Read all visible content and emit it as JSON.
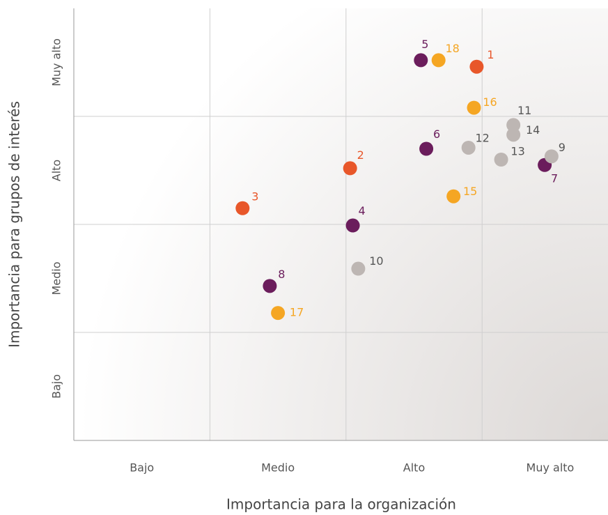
{
  "chart_data": {
    "type": "scatter",
    "x_label": "Importancia para la organización",
    "y_label": "Importancia para grupos de interés",
    "xlim": [
      0,
      3.92
    ],
    "ylim": [
      0,
      4
    ],
    "xticks": [
      {
        "value": 0.5,
        "label": "Bajo"
      },
      {
        "value": 1.5,
        "label": "Medio"
      },
      {
        "value": 2.5,
        "label": "Alto"
      },
      {
        "value": 3.5,
        "label": "Muy alto"
      }
    ],
    "yticks": [
      {
        "value": 0.5,
        "label": "Bajo"
      },
      {
        "value": 1.5,
        "label": "Medio"
      },
      {
        "value": 2.5,
        "label": "Alto"
      },
      {
        "value": 3.5,
        "label": "Muy alto"
      }
    ],
    "xgrid": [
      1,
      2,
      3
    ],
    "ygrid": [
      1,
      2,
      3
    ],
    "grid": true,
    "series": [
      {
        "color": "#e8572a",
        "label_color": "#e8572a",
        "labels": [
          "1",
          "2",
          "3"
        ],
        "x": [
          2.96,
          2.03,
          1.24
        ],
        "y": [
          3.46,
          2.52,
          2.15
        ]
      },
      {
        "color": "#6b1d5c",
        "label_color": "#6b1d5c",
        "labels": [
          "4",
          "5",
          "6",
          "7",
          "8"
        ],
        "x": [
          2.05,
          2.55,
          2.59,
          3.46,
          1.44
        ],
        "y": [
          1.99,
          3.52,
          2.7,
          2.55,
          1.43
        ]
      },
      {
        "color": "#bdb6b3",
        "label_color": "#555555",
        "labels": [
          "9",
          "10",
          "11",
          "12",
          "13",
          "14"
        ],
        "x": [
          3.51,
          2.09,
          3.23,
          2.9,
          3.14,
          3.23
        ],
        "y": [
          2.63,
          1.59,
          2.92,
          2.71,
          2.6,
          2.83
        ]
      },
      {
        "color": "#f5a623",
        "label_color": "#f5a623",
        "labels": [
          "15",
          "16",
          "17",
          "18"
        ],
        "x": [
          2.79,
          2.94,
          1.5,
          2.68
        ],
        "y": [
          2.26,
          3.08,
          1.18,
          3.52
        ]
      }
    ]
  }
}
